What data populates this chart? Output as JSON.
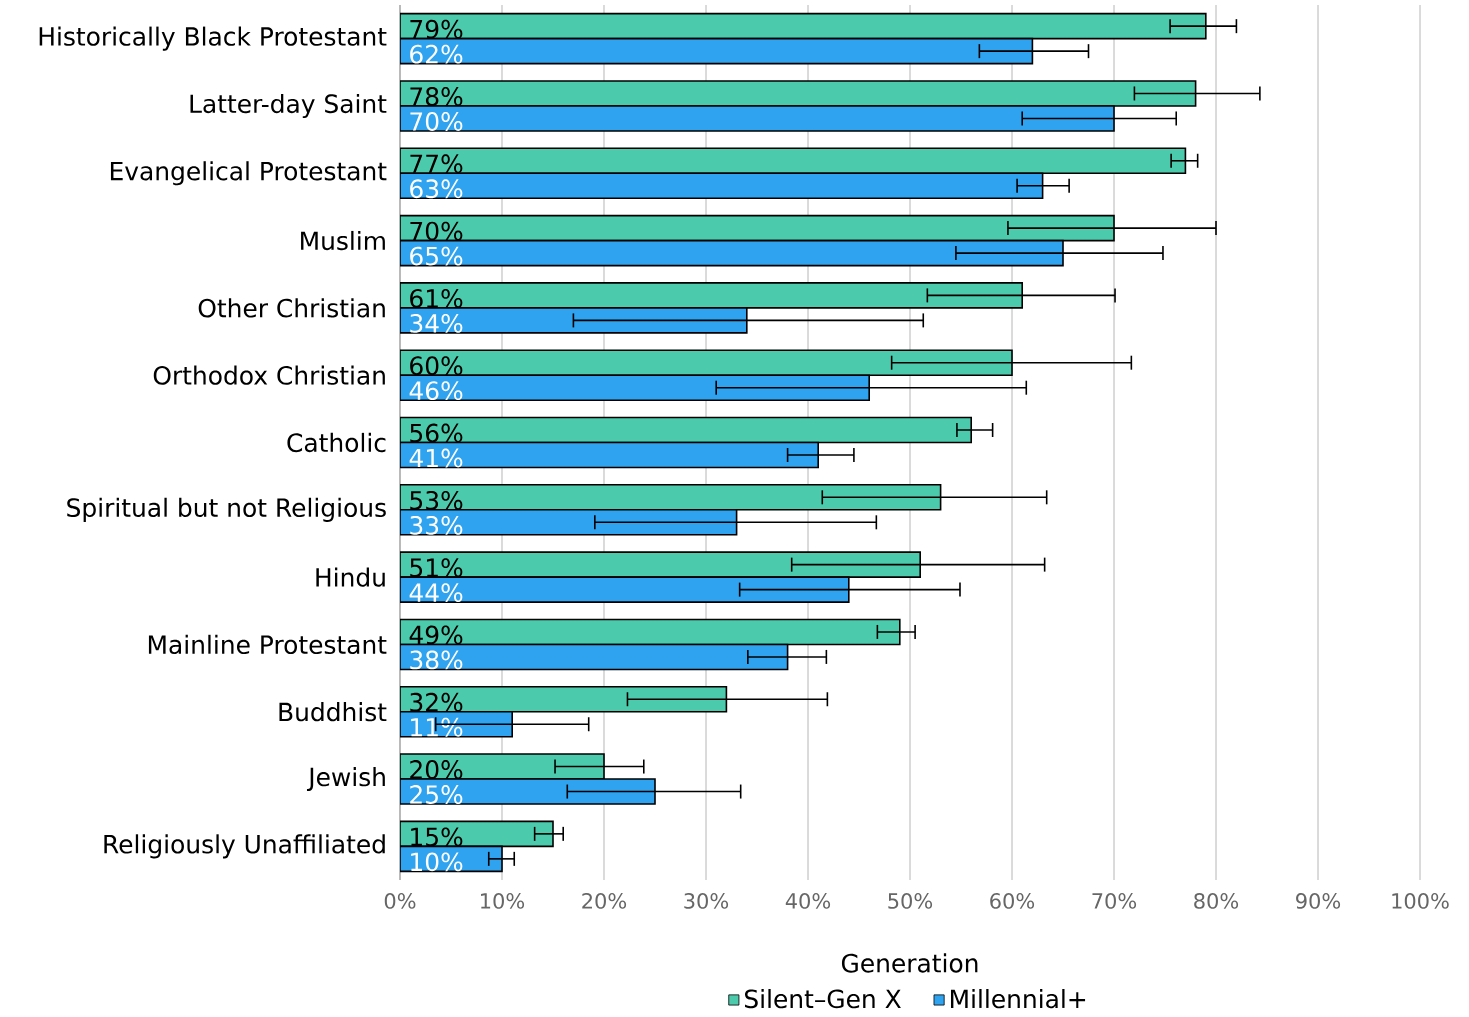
{
  "chart_data": {
    "type": "bar",
    "orientation": "horizontal",
    "categories": [
      "Historically Black Protestant",
      "Latter-day Saint",
      "Evangelical Protestant",
      "Muslim",
      "Other Christian",
      "Orthodox Christian",
      "Catholic",
      "Spiritual but not Religious",
      "Hindu",
      "Mainline Protestant",
      "Buddhist",
      "Jewish",
      "Religiously Unaffiliated"
    ],
    "series": [
      {
        "name": "Silent–Gen X",
        "color": "#4ccbac",
        "values": [
          79,
          78,
          77,
          70,
          61,
          60,
          56,
          53,
          51,
          49,
          32,
          20,
          15
        ],
        "value_labels": [
          "79%",
          "78%",
          "77%",
          "70%",
          "61%",
          "60%",
          "56%",
          "53%",
          "51%",
          "49%",
          "32%",
          "20%",
          "15%"
        ],
        "errors": [
          [
            75.5,
            82
          ],
          [
            72,
            84.3
          ],
          [
            75.6,
            78.2
          ],
          [
            59.6,
            80
          ],
          [
            51.7,
            70.1
          ],
          [
            48.2,
            71.7
          ],
          [
            54.6,
            58.1
          ],
          [
            41.4,
            63.4
          ],
          [
            38.4,
            63.2
          ],
          [
            46.8,
            50.5
          ],
          [
            22.3,
            41.9
          ],
          [
            15.2,
            23.9
          ],
          [
            13.2,
            16
          ]
        ]
      },
      {
        "name": "Millennial+",
        "color": "#2fa3ef",
        "values": [
          62,
          70,
          63,
          65,
          34,
          46,
          41,
          33,
          44,
          38,
          11,
          25,
          10
        ],
        "value_labels": [
          "62%",
          "70%",
          "63%",
          "65%",
          "34%",
          "46%",
          "41%",
          "33%",
          "44%",
          "38%",
          "11%",
          "25%",
          "10%"
        ],
        "errors": [
          [
            56.8,
            67.5
          ],
          [
            61,
            76.1
          ],
          [
            60.5,
            65.6
          ],
          [
            54.5,
            74.8
          ],
          [
            17,
            51.3
          ],
          [
            31,
            61.4
          ],
          [
            38,
            44.5
          ],
          [
            19.1,
            46.7
          ],
          [
            33.3,
            54.9
          ],
          [
            34.1,
            41.8
          ],
          [
            3.5,
            18.5
          ],
          [
            16.4,
            33.4
          ],
          [
            8.7,
            11.2
          ]
        ]
      }
    ],
    "xlim": [
      0,
      100
    ],
    "xticks": [
      {
        "value": 0,
        "label": "0%"
      },
      {
        "value": 10,
        "label": "10%"
      },
      {
        "value": 20,
        "label": "20%"
      },
      {
        "value": 30,
        "label": "30%"
      },
      {
        "value": 40,
        "label": "40%"
      },
      {
        "value": 50,
        "label": "50%"
      },
      {
        "value": 60,
        "label": "60%"
      },
      {
        "value": 70,
        "label": "70%"
      },
      {
        "value": 80,
        "label": "80%"
      },
      {
        "value": 90,
        "label": "90%"
      },
      {
        "value": 100,
        "label": "100%"
      }
    ],
    "legend_title": "Generation",
    "legend": "bottom",
    "grid": "x"
  }
}
